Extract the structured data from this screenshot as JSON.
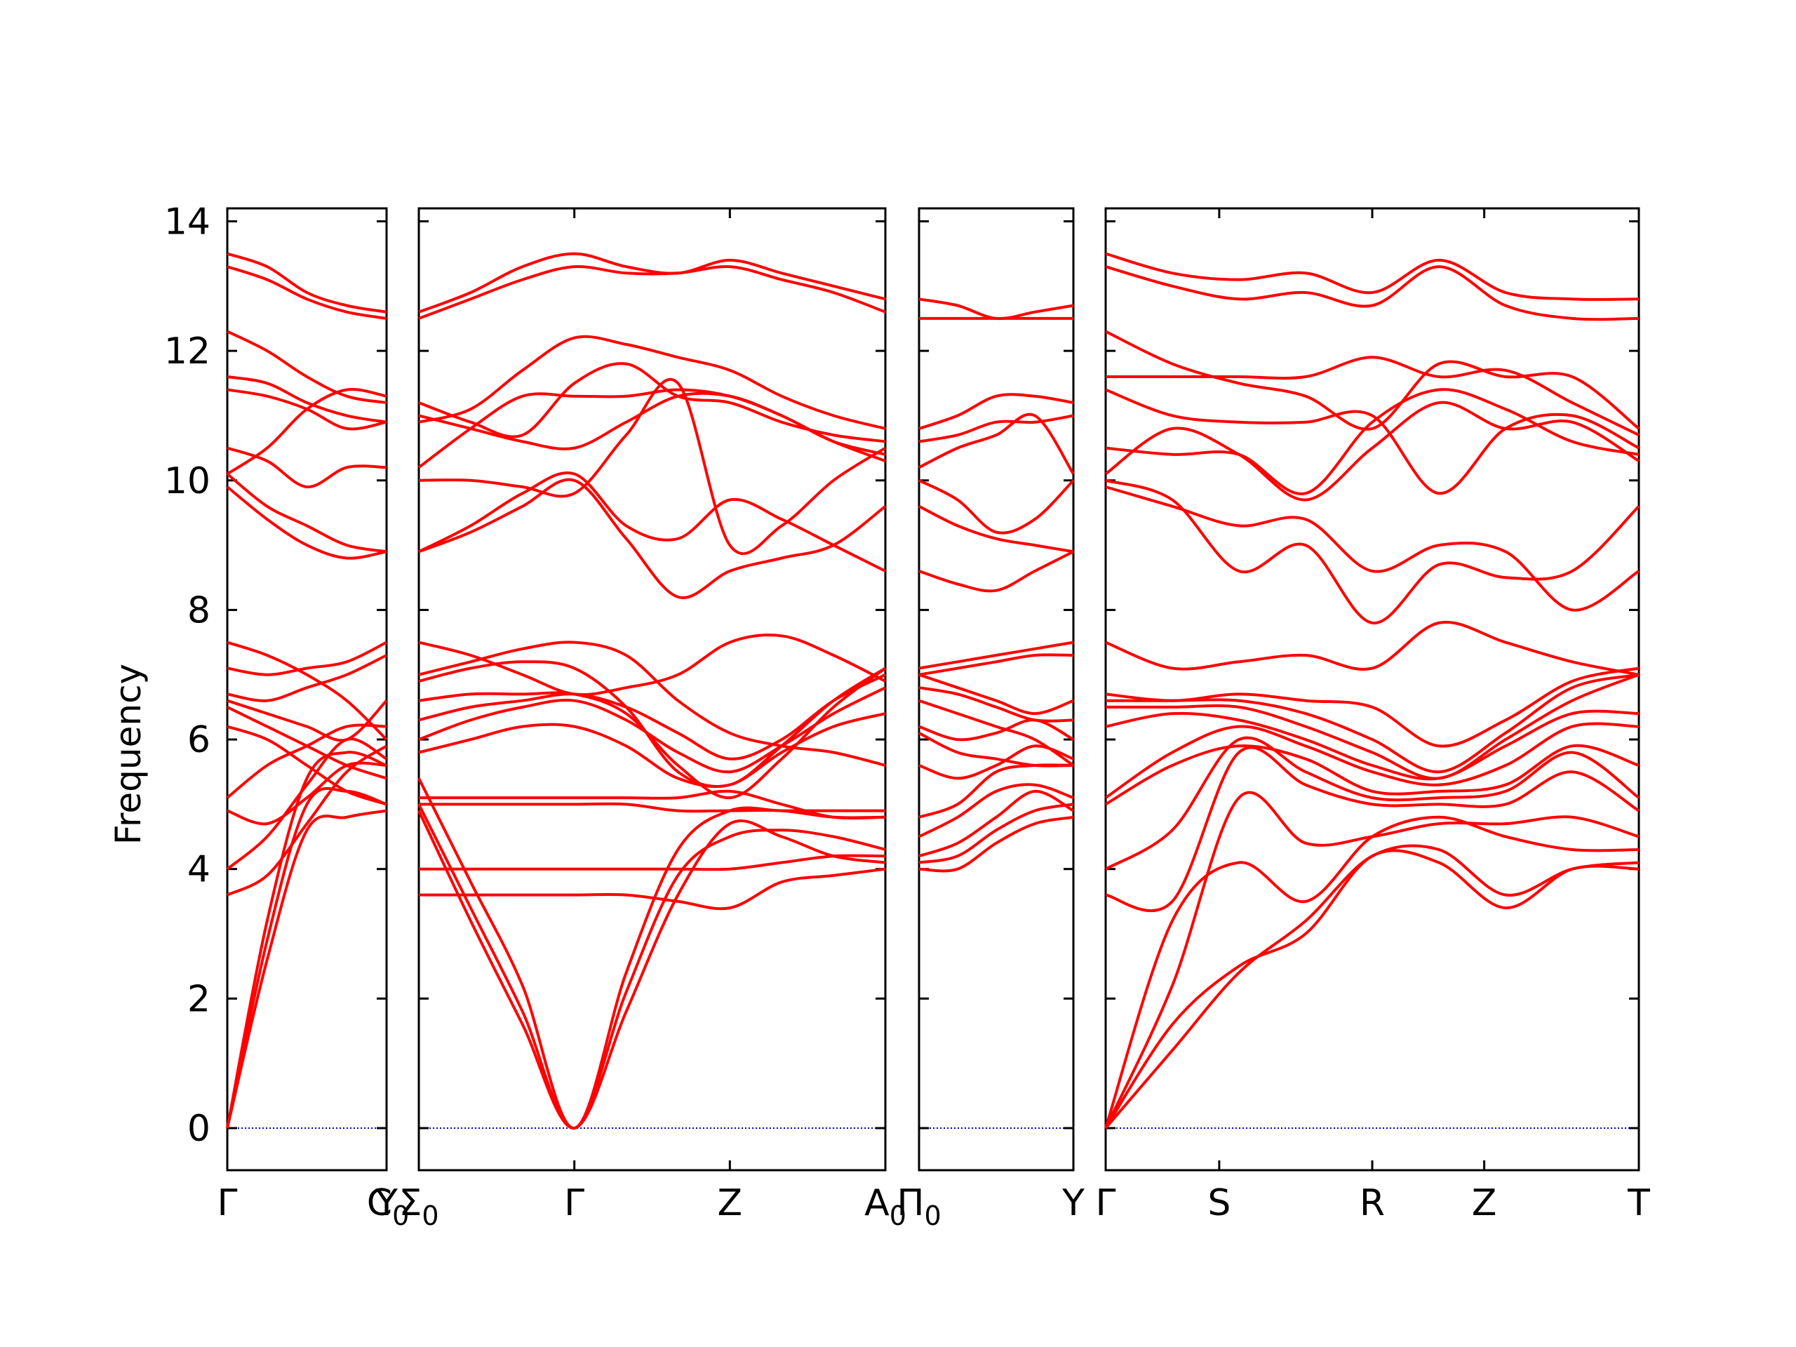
{
  "chart_data": {
    "type": "line",
    "title": "",
    "ylabel": "Frequency",
    "xlabel": "",
    "ylim": [
      -0.65,
      14.2
    ],
    "yticks": [
      0,
      2,
      4,
      6,
      8,
      10,
      12,
      14
    ],
    "grid": false,
    "line_color": "#ff0000",
    "zero_line_color": "#0000cc",
    "panels": [
      {
        "id": "p1",
        "kpoints": [
          {
            "label": "Γ",
            "sub": "",
            "pos": 0
          },
          {
            "label": "Y",
            "sub": "",
            "pos": 1
          }
        ],
        "end_label": {
          "label": "C",
          "sub": "0"
        },
        "bands": [
          [
            0,
            2.6,
            4.6,
            4.8,
            4.9
          ],
          [
            0,
            2.9,
            5.0,
            5.2,
            5.0
          ],
          [
            0,
            3.2,
            5.4,
            5.8,
            5.6
          ],
          [
            3.6,
            3.9,
            4.7,
            5.5,
            5.9
          ],
          [
            4.0,
            4.5,
            5.3,
            6.0,
            5.7
          ],
          [
            4.9,
            4.7,
            5.1,
            5.6,
            5.6
          ],
          [
            5.1,
            5.6,
            5.9,
            6.2,
            6.2
          ],
          [
            6.2,
            6.0,
            5.6,
            5.2,
            5.0
          ],
          [
            6.5,
            6.2,
            5.9,
            5.6,
            5.4
          ],
          [
            6.6,
            6.4,
            6.2,
            6.0,
            6.6
          ],
          [
            6.7,
            6.6,
            6.8,
            7.0,
            7.3
          ],
          [
            7.1,
            7.0,
            7.1,
            7.2,
            7.5
          ],
          [
            7.5,
            7.3,
            7.0,
            6.6,
            6.0
          ],
          [
            9.9,
            9.4,
            9.0,
            8.8,
            8.9
          ],
          [
            10.1,
            9.6,
            9.3,
            9.0,
            8.9
          ],
          [
            10.1,
            10.5,
            11.1,
            11.4,
            11.3
          ],
          [
            10.5,
            10.3,
            9.9,
            10.2,
            10.2
          ],
          [
            11.4,
            11.3,
            11.1,
            10.8,
            10.9
          ],
          [
            11.6,
            11.5,
            11.2,
            11.0,
            10.9
          ],
          [
            12.3,
            12.0,
            11.6,
            11.3,
            11.2
          ],
          [
            13.3,
            13.1,
            12.8,
            12.6,
            12.5
          ],
          [
            13.5,
            13.3,
            12.9,
            12.7,
            12.6
          ]
        ]
      },
      {
        "id": "p2",
        "kpoints": [
          {
            "label": "Σ",
            "sub": "0",
            "pos": 0
          },
          {
            "label": "Γ",
            "sub": "",
            "pos": 1
          },
          {
            "label": "Z",
            "sub": "",
            "pos": 2
          },
          {
            "label": "A",
            "sub": "0",
            "pos": 3
          }
        ],
        "bands": [
          [
            4.9,
            3.2,
            1.6,
            0,
            1.8,
            3.6,
            4.7,
            4.5,
            4.2,
            4.1
          ],
          [
            5.0,
            3.4,
            1.8,
            0,
            2.1,
            3.9,
            4.5,
            4.6,
            4.5,
            4.3
          ],
          [
            5.4,
            3.8,
            2.2,
            0,
            2.4,
            4.3,
            4.9,
            4.9,
            4.9,
            4.9
          ],
          [
            3.6,
            3.6,
            3.6,
            3.6,
            3.6,
            3.5,
            3.4,
            3.8,
            3.9,
            4.0
          ],
          [
            4.0,
            4.0,
            4.0,
            4.0,
            4.0,
            4.0,
            4.0,
            4.1,
            4.2,
            4.2
          ],
          [
            5.0,
            5.0,
            5.0,
            5.0,
            5.0,
            4.9,
            4.9,
            4.9,
            4.8,
            4.8
          ],
          [
            5.1,
            5.1,
            5.1,
            5.1,
            5.1,
            5.1,
            5.2,
            5.0,
            4.8,
            4.8
          ],
          [
            5.8,
            6.0,
            6.2,
            6.2,
            5.9,
            5.4,
            5.3,
            5.8,
            6.2,
            6.4
          ],
          [
            6.0,
            6.3,
            6.5,
            6.6,
            6.3,
            5.8,
            5.5,
            5.9,
            6.4,
            6.8
          ],
          [
            6.3,
            6.5,
            6.6,
            6.7,
            6.5,
            6.1,
            5.7,
            6.0,
            6.6,
            7.0
          ],
          [
            6.6,
            6.7,
            6.7,
            6.7,
            6.4,
            5.6,
            5.1,
            5.7,
            6.5,
            7.1
          ],
          [
            6.9,
            7.1,
            7.2,
            7.1,
            6.5,
            5.5,
            5.3,
            5.9,
            6.6,
            7.1
          ],
          [
            7.5,
            7.3,
            7.0,
            6.7,
            6.8,
            7.0,
            7.5,
            7.6,
            7.3,
            6.9
          ],
          [
            7.0,
            7.2,
            7.4,
            7.5,
            7.3,
            6.6,
            6.1,
            5.9,
            5.8,
            5.6
          ],
          [
            8.9,
            9.2,
            9.6,
            10.0,
            9.1,
            8.2,
            8.6,
            8.8,
            9.0,
            9.6
          ],
          [
            8.9,
            9.3,
            9.8,
            10.1,
            9.3,
            9.1,
            9.7,
            9.4,
            9.0,
            8.6
          ],
          [
            10.0,
            10.0,
            9.9,
            9.8,
            10.7,
            11.5,
            9.0,
            9.3,
            10.0,
            10.5
          ],
          [
            10.2,
            10.8,
            11.3,
            11.3,
            11.3,
            11.4,
            11.3,
            11.0,
            10.6,
            10.4
          ],
          [
            11.0,
            10.8,
            10.6,
            10.5,
            10.9,
            11.3,
            11.3,
            11.0,
            10.6,
            10.3
          ],
          [
            11.2,
            10.9,
            10.7,
            11.5,
            11.8,
            11.3,
            11.2,
            10.9,
            10.7,
            10.6
          ],
          [
            10.9,
            11.1,
            11.7,
            12.2,
            12.1,
            11.9,
            11.7,
            11.3,
            11.0,
            10.8
          ],
          [
            12.5,
            12.8,
            13.1,
            13.3,
            13.2,
            13.2,
            13.3,
            13.1,
            12.9,
            12.6
          ],
          [
            12.6,
            12.9,
            13.3,
            13.5,
            13.3,
            13.2,
            13.4,
            13.2,
            13.0,
            12.8
          ]
        ]
      },
      {
        "id": "p3",
        "kpoints": [
          {
            "label": "Π",
            "sub": "0",
            "pos": 0
          },
          {
            "label": "Y",
            "sub": "",
            "pos": 1
          }
        ],
        "bands": [
          [
            4.0,
            4.0,
            4.4,
            4.7,
            4.8
          ],
          [
            4.1,
            4.2,
            4.6,
            4.9,
            5.0
          ],
          [
            4.2,
            4.4,
            4.8,
            5.2,
            4.9
          ],
          [
            4.5,
            4.8,
            5.2,
            5.3,
            5.1
          ],
          [
            4.8,
            5.0,
            5.5,
            5.6,
            5.6
          ],
          [
            5.6,
            5.4,
            5.6,
            5.9,
            5.7
          ],
          [
            6.1,
            5.8,
            5.7,
            5.6,
            5.6
          ],
          [
            6.2,
            6.0,
            6.1,
            6.3,
            6.0
          ],
          [
            6.6,
            6.4,
            6.2,
            6.0,
            5.6
          ],
          [
            6.8,
            6.7,
            6.5,
            6.3,
            6.3
          ],
          [
            7.0,
            6.8,
            6.6,
            6.4,
            6.6
          ],
          [
            7.1,
            7.2,
            7.3,
            7.4,
            7.5
          ],
          [
            7.0,
            7.1,
            7.2,
            7.3,
            7.3
          ],
          [
            8.6,
            8.4,
            8.3,
            8.6,
            8.9
          ],
          [
            9.6,
            9.3,
            9.1,
            9.0,
            8.9
          ],
          [
            10.0,
            9.7,
            9.2,
            9.4,
            10.0
          ],
          [
            10.2,
            10.5,
            10.7,
            11.0,
            10.1
          ],
          [
            10.6,
            10.7,
            10.9,
            10.9,
            11.0
          ],
          [
            10.8,
            11.0,
            11.3,
            11.3,
            11.2
          ],
          [
            12.5,
            12.5,
            12.5,
            12.5,
            12.5
          ],
          [
            12.8,
            12.7,
            12.5,
            12.6,
            12.7
          ]
        ]
      },
      {
        "id": "p4",
        "kpoints": [
          {
            "label": "Γ",
            "sub": "",
            "pos": 0
          },
          {
            "label": "S",
            "sub": "",
            "pos": 1
          },
          {
            "label": "R",
            "sub": "",
            "pos": 2
          },
          {
            "label": "Z",
            "sub": "",
            "pos": 3
          },
          {
            "label": "T",
            "sub": "",
            "pos": 4
          }
        ],
        "kpos": [
          0,
          0.213,
          0.5,
          0.71,
          1.0
        ],
        "bands": [
          [
            0,
            1.2,
            2.4,
            3.2,
            4.2,
            4.3,
            3.6,
            4.0,
            4.1
          ],
          [
            0,
            1.6,
            2.5,
            3.0,
            4.2,
            4.1,
            3.4,
            4.0,
            4.0
          ],
          [
            0,
            3.2,
            4.1,
            3.5,
            4.5,
            4.8,
            4.5,
            4.3,
            4.3
          ],
          [
            0,
            2.2,
            5.1,
            4.4,
            4.5,
            4.7,
            4.7,
            4.8,
            4.5
          ],
          [
            3.6,
            3.5,
            5.8,
            5.3,
            5.0,
            5.0,
            5.0,
            5.5,
            4.9
          ],
          [
            4.0,
            4.6,
            6.0,
            5.5,
            5.1,
            5.1,
            5.2,
            5.8,
            5.1
          ],
          [
            5.0,
            5.6,
            5.9,
            5.7,
            5.2,
            5.2,
            5.3,
            5.9,
            5.6
          ],
          [
            5.1,
            5.8,
            6.2,
            5.9,
            5.5,
            5.3,
            5.6,
            6.2,
            6.2
          ],
          [
            6.2,
            6.4,
            6.3,
            6.0,
            5.6,
            5.4,
            5.9,
            6.4,
            6.4
          ],
          [
            6.5,
            6.5,
            6.5,
            6.2,
            5.8,
            5.4,
            6.0,
            6.6,
            7.0
          ],
          [
            6.6,
            6.6,
            6.6,
            6.4,
            6.0,
            5.5,
            6.1,
            6.8,
            7.0
          ],
          [
            6.7,
            6.6,
            6.7,
            6.6,
            6.5,
            5.9,
            6.3,
            6.9,
            7.1
          ],
          [
            7.5,
            7.1,
            7.2,
            7.3,
            7.1,
            7.8,
            7.5,
            7.2,
            7.0
          ],
          [
            9.9,
            9.6,
            9.3,
            9.4,
            8.6,
            9.0,
            8.9,
            8.0,
            8.6
          ],
          [
            10.0,
            9.7,
            8.6,
            9.0,
            7.8,
            8.7,
            8.5,
            8.6,
            9.6
          ],
          [
            10.1,
            10.8,
            10.4,
            9.7,
            10.5,
            11.2,
            10.8,
            10.9,
            10.3
          ],
          [
            10.5,
            10.4,
            10.4,
            9.8,
            10.9,
            11.4,
            11.1,
            10.6,
            10.4
          ],
          [
            11.4,
            11.0,
            10.9,
            10.9,
            11.0,
            9.8,
            10.8,
            11.0,
            10.5
          ],
          [
            11.6,
            11.6,
            11.6,
            11.6,
            11.9,
            11.6,
            11.7,
            11.2,
            10.7
          ],
          [
            12.3,
            11.8,
            11.5,
            11.3,
            10.8,
            11.8,
            11.6,
            11.6,
            10.8
          ],
          [
            13.3,
            13.0,
            12.8,
            12.9,
            12.7,
            13.3,
            12.7,
            12.5,
            12.5
          ],
          [
            13.5,
            13.2,
            13.1,
            13.2,
            12.9,
            13.4,
            12.9,
            12.8,
            12.8
          ]
        ]
      }
    ]
  }
}
